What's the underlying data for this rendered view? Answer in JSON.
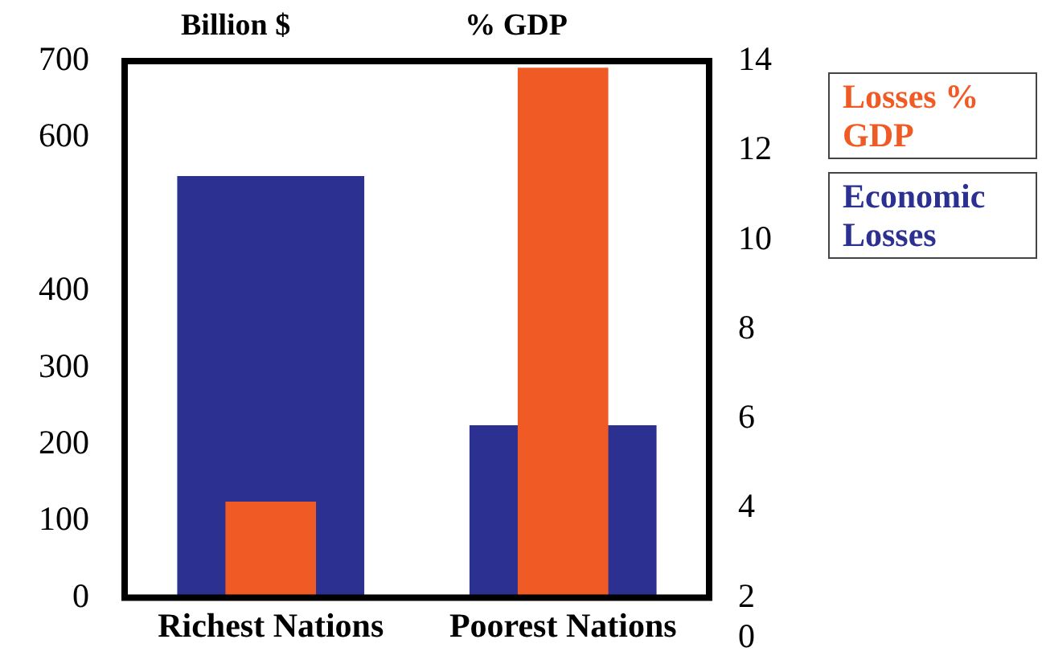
{
  "chart_data": {
    "type": "bar",
    "ylabel": "Billion $",
    "y2label": "% GDP",
    "categories": [
      "Richest Nations",
      "Poorest Nations"
    ],
    "series": [
      {
        "name": "Economic Losses",
        "color": "#2b3091",
        "values": [
          550,
          225
        ]
      },
      {
        "name": "Losses % GDP",
        "color": "#f05a24",
        "values": [
          4.15,
          13.85
        ],
        "axis": "y2"
      }
    ],
    "ylim": [
      0,
      700
    ],
    "yticks": [
      0,
      100,
      200,
      300,
      400,
      600,
      700
    ],
    "y2lim": [
      2,
      14
    ],
    "y2ticks": [
      2,
      4,
      6,
      8,
      10,
      12,
      14
    ],
    "annotations": [
      "0"
    ],
    "legend": "right",
    "grid": false
  }
}
